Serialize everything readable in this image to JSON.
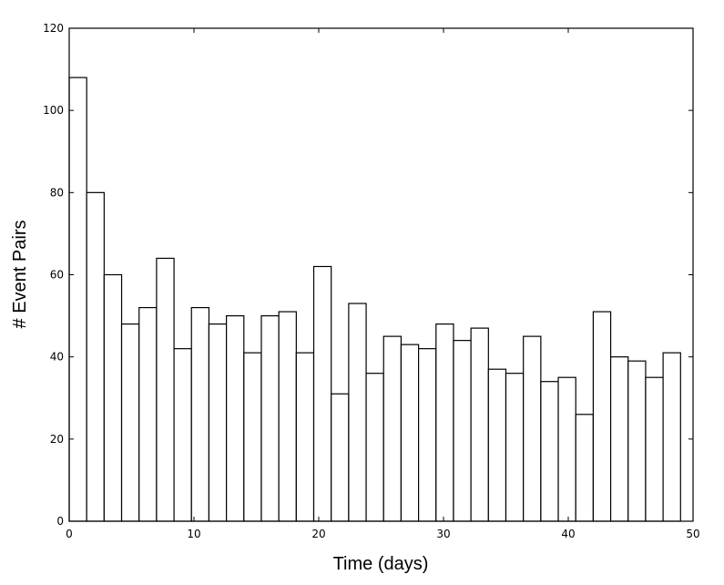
{
  "chart_data": {
    "type": "bar",
    "xlabel": "Time (days)",
    "ylabel": "# Event Pairs",
    "xlim": [
      0,
      50
    ],
    "ylim": [
      0,
      120
    ],
    "xticks": [
      "0",
      "10",
      "20",
      "30",
      "40",
      "50"
    ],
    "yticks": [
      "0",
      "20",
      "40",
      "60",
      "80",
      "100",
      "120"
    ],
    "bin_width": 1.4,
    "bins": [
      {
        "x": 0.0,
        "value": 108
      },
      {
        "x": 1.4,
        "value": 80
      },
      {
        "x": 2.8,
        "value": 60
      },
      {
        "x": 4.2,
        "value": 48
      },
      {
        "x": 5.6,
        "value": 52
      },
      {
        "x": 7.0,
        "value": 64
      },
      {
        "x": 8.4,
        "value": 42
      },
      {
        "x": 9.8,
        "value": 52
      },
      {
        "x": 11.2,
        "value": 48
      },
      {
        "x": 12.6,
        "value": 50
      },
      {
        "x": 14.0,
        "value": 41
      },
      {
        "x": 15.4,
        "value": 50
      },
      {
        "x": 16.8,
        "value": 51
      },
      {
        "x": 18.2,
        "value": 41
      },
      {
        "x": 19.6,
        "value": 62
      },
      {
        "x": 21.0,
        "value": 31
      },
      {
        "x": 22.4,
        "value": 53
      },
      {
        "x": 23.8,
        "value": 36
      },
      {
        "x": 25.2,
        "value": 45
      },
      {
        "x": 26.6,
        "value": 43
      },
      {
        "x": 28.0,
        "value": 42
      },
      {
        "x": 29.4,
        "value": 48
      },
      {
        "x": 30.8,
        "value": 44
      },
      {
        "x": 32.2,
        "value": 47
      },
      {
        "x": 33.6,
        "value": 37
      },
      {
        "x": 35.0,
        "value": 36
      },
      {
        "x": 36.4,
        "value": 45
      },
      {
        "x": 37.8,
        "value": 34
      },
      {
        "x": 39.2,
        "value": 35
      },
      {
        "x": 40.6,
        "value": 26
      },
      {
        "x": 42.0,
        "value": 51
      },
      {
        "x": 43.4,
        "value": 40
      },
      {
        "x": 44.8,
        "value": 39
      },
      {
        "x": 46.2,
        "value": 35
      },
      {
        "x": 47.6,
        "value": 41
      }
    ],
    "grid": false,
    "legend": false
  }
}
